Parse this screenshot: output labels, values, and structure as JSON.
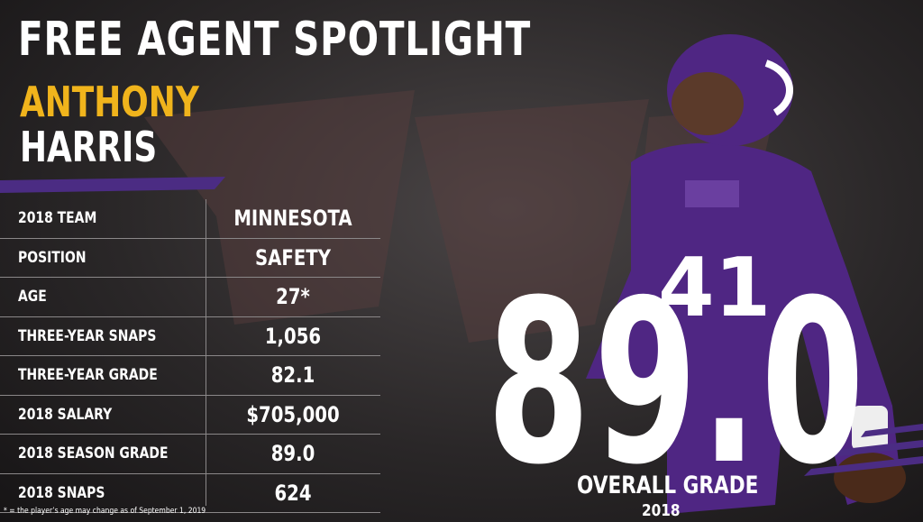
{
  "header": {
    "title": "FREE AGENT SPOTLIGHT",
    "first_name": "ANTHONY",
    "last_name": "HARRIS"
  },
  "table": {
    "rows": [
      [
        "2018 TEAM",
        "MINNESOTA"
      ],
      [
        "POSITION",
        "SAFETY"
      ],
      [
        "AGE",
        "27*"
      ],
      [
        "THREE-YEAR SNAPS",
        "1,056"
      ],
      [
        "THREE-YEAR GRADE",
        "82.1"
      ],
      [
        "2018 SALARY",
        "$705,000"
      ],
      [
        "2018 SEASON GRADE",
        "89.0"
      ],
      [
        "2018 SNAPS",
        "624"
      ]
    ]
  },
  "footnote": "* = the player’s age may change as of September 1, 2019",
  "grade": {
    "value": "89.0",
    "label": "OVERALL GRADE",
    "year": "2018"
  }
}
